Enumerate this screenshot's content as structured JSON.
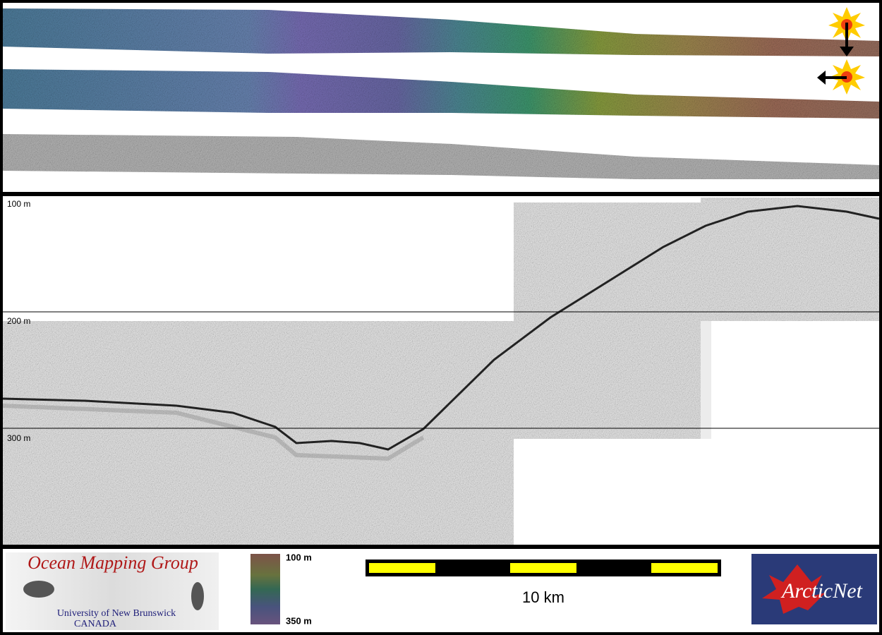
{
  "profile": {
    "depth_labels": [
      "100 m",
      "200 m",
      "300 m"
    ]
  },
  "logo": {
    "title": "Ocean Mapping Group",
    "line1": "University of New Brunswick",
    "line2": "CANADA"
  },
  "colorbar": {
    "top_label": "100 m",
    "bottom_label": "350 m"
  },
  "scalebar": {
    "label": "10 km"
  },
  "partner": {
    "name": "ArcticNet"
  }
}
